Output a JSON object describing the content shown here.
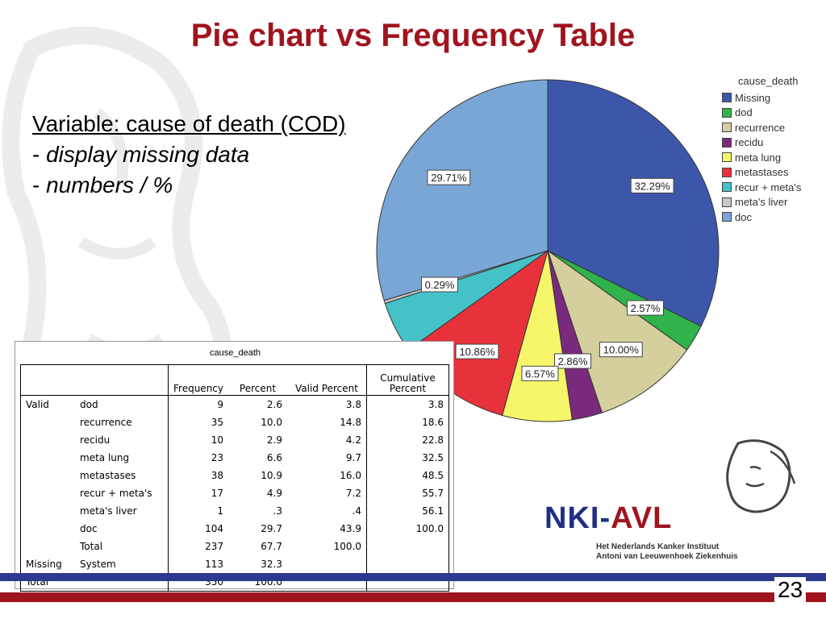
{
  "slide": {
    "title": "Pie chart vs Frequency Table",
    "page_number": "23"
  },
  "text_block": {
    "heading": "Variable: cause of death (COD)",
    "bullets": [
      {
        "dash": "- ",
        "text": "display missing data"
      },
      {
        "dash": "- ",
        "text": "numbers / %"
      }
    ]
  },
  "legend": {
    "title": "cause_death",
    "items": [
      {
        "label": "Missing",
        "color": "#3c57aa"
      },
      {
        "label": "dod",
        "color": "#2fb34a"
      },
      {
        "label": "recurrence",
        "color": "#d4cf9c"
      },
      {
        "label": "recidu",
        "color": "#7a2a7d"
      },
      {
        "label": "meta lung",
        "color": "#f7f56a"
      },
      {
        "label": "metastases",
        "color": "#e8323b"
      },
      {
        "label": "recur + meta's",
        "color": "#44c2c8"
      },
      {
        "label": "meta's liver",
        "color": "#c8c8c8"
      },
      {
        "label": "doc",
        "color": "#7aa6d6"
      }
    ]
  },
  "chart_data": {
    "type": "pie",
    "title": "",
    "legend_title": "cause_death",
    "legend_position": "right",
    "categories": [
      "Missing",
      "dod",
      "recurrence",
      "recidu",
      "meta lung",
      "metastases",
      "recur + meta's",
      "meta's liver",
      "doc"
    ],
    "values": [
      32.29,
      2.57,
      10.0,
      2.86,
      6.57,
      10.86,
      4.86,
      0.29,
      29.71
    ],
    "labels": [
      "32.29%",
      "2.57%",
      "10.00%",
      "2.86%",
      "6.57%",
      "10.86%",
      "",
      "0.29%",
      "29.71%"
    ],
    "colors": [
      "#3c57aa",
      "#2fb34a",
      "#d4cf9c",
      "#7a2a7d",
      "#f7f56a",
      "#e8323b",
      "#44c2c8",
      "#c8c8c8",
      "#7aa6d6"
    ]
  },
  "table": {
    "title": "cause_death",
    "headers": [
      "",
      "",
      "Frequency",
      "Percent",
      "Valid Percent",
      "Cumulative\nPercent"
    ],
    "header_cum_line1": "Cumulative",
    "header_cum_line2": "Percent",
    "rows": [
      {
        "group": "Valid",
        "label": "dod",
        "frequency": "9",
        "percent": "2.6",
        "valid_percent": "3.8",
        "cumulative": "3.8"
      },
      {
        "group": "",
        "label": "recurrence",
        "frequency": "35",
        "percent": "10.0",
        "valid_percent": "14.8",
        "cumulative": "18.6"
      },
      {
        "group": "",
        "label": "recidu",
        "frequency": "10",
        "percent": "2.9",
        "valid_percent": "4.2",
        "cumulative": "22.8"
      },
      {
        "group": "",
        "label": "meta lung",
        "frequency": "23",
        "percent": "6.6",
        "valid_percent": "9.7",
        "cumulative": "32.5"
      },
      {
        "group": "",
        "label": "metastases",
        "frequency": "38",
        "percent": "10.9",
        "valid_percent": "16.0",
        "cumulative": "48.5"
      },
      {
        "group": "",
        "label": "recur + meta's",
        "frequency": "17",
        "percent": "4.9",
        "valid_percent": "7.2",
        "cumulative": "55.7"
      },
      {
        "group": "",
        "label": "meta's liver",
        "frequency": "1",
        "percent": ".3",
        "valid_percent": ".4",
        "cumulative": "56.1"
      },
      {
        "group": "",
        "label": "doc",
        "frequency": "104",
        "percent": "29.7",
        "valid_percent": "43.9",
        "cumulative": "100.0"
      },
      {
        "group": "",
        "label": "Total",
        "frequency": "237",
        "percent": "67.7",
        "valid_percent": "100.0",
        "cumulative": ""
      },
      {
        "group": "Missing",
        "label": "System",
        "frequency": "113",
        "percent": "32.3",
        "valid_percent": "",
        "cumulative": ""
      },
      {
        "group": "Total",
        "label": "",
        "frequency": "350",
        "percent": "100.0",
        "valid_percent": "",
        "cumulative": ""
      }
    ]
  },
  "logo": {
    "name_part1": "NKI-",
    "name_part2": "AVL",
    "subtitle_line1": "Het Nederlands Kanker Instituut",
    "subtitle_line2": "Antoni van Leeuwenhoek Ziekenhuis"
  },
  "colors": {
    "title_red": "#a0141e",
    "brand_blue": "#2b3990",
    "brand_red": "#a0141e"
  }
}
